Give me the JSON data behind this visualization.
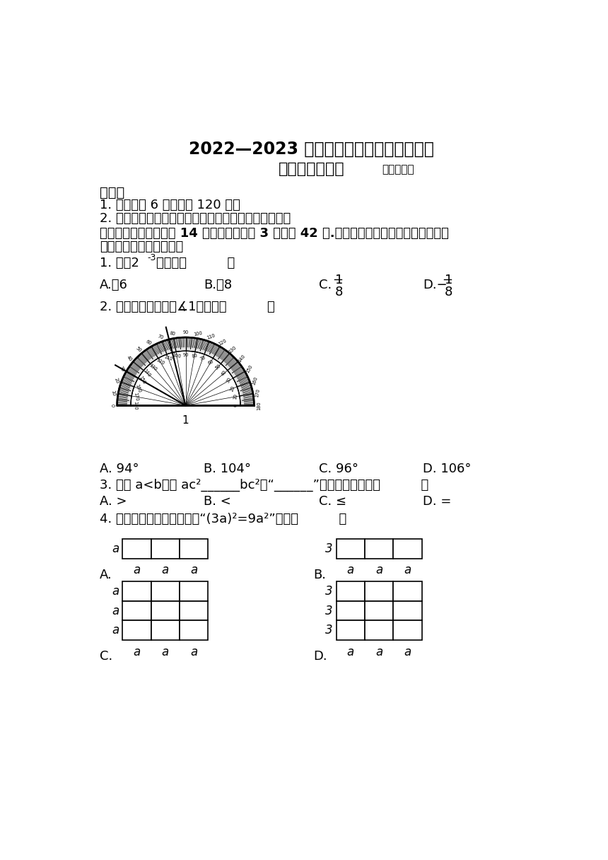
{
  "title1": "2022—2023 学年第二学期文化课水平测试",
  "title2": "七年级数学试题",
  "title2_suffix": "（冀教版）",
  "section_shuo": "说明：",
  "note1": "1. 本试题共 6 页，满分 120 分。",
  "note2": "2. 请将所有答案填写在答题卡上，答在本试卷上无效。",
  "section1": "一、选择题（本大题共 14 个小题，每小题 3 分，共 42 分.在每小题给出的四个选项中，只有",
  "section1b": "一项是符合题目要求的）",
  "q1_text": "1. 计算2",
  "q1_sup": "-3",
  "q1_rest": "的値是（          ）",
  "q1_A": "A.－6",
  "q1_B": "B.－8",
  "q1_C_pre": "C.",
  "q1_C_top": "1",
  "q1_C_bot": "8",
  "q1_D_pre": "D.−",
  "q1_D_top": "1",
  "q1_D_bot": "8",
  "q2_text": "2. 如图，请你观察，∡1最接近（          ）",
  "q2_A": "A. 94°",
  "q2_B": "B. 104°",
  "q2_C": "C. 96°",
  "q2_D": "D. 106°",
  "q3_text": "3. 已知 a<b，则 ac²______bc²，“______”上应填的符号是（          ）",
  "q3_A": "A. >",
  "q3_B": "B. <",
  "q3_C": "C. ≤",
  "q3_D": "D. =",
  "q4_text": "4. 下列各图中，能直观解释“(3a)²=9a²”的是（          ）",
  "bg_color": "#ffffff",
  "text_color": "#000000"
}
